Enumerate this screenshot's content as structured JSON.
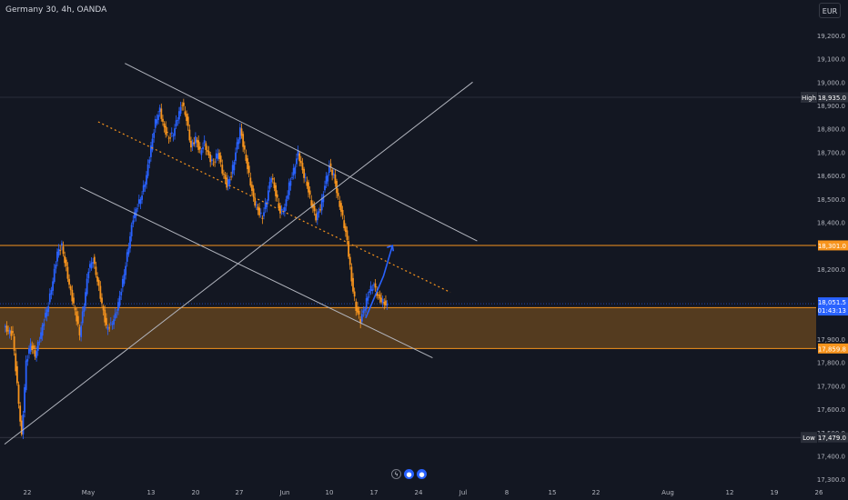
{
  "header": {
    "symbol": "Germany 30, 4h, OANDA",
    "currency": "EUR"
  },
  "colors": {
    "background": "#131722",
    "up": "#2962ff",
    "down": "#f7941d",
    "level": "#f7941d",
    "trendline": "#b2b5be",
    "zone": "#8a5a1e",
    "projection": "#2962ff",
    "label_dark": "#2a2e39",
    "last_price": "#2962ff"
  },
  "chart_data": {
    "type": "candlestick",
    "y_ticks": [
      "19,200.0",
      "19,100.0",
      "19,000.0",
      "18,900.0",
      "18,800.0",
      "18,700.0",
      "18,600.0",
      "18,500.0",
      "18,400.0",
      "18,200.0",
      "17,900.0",
      "17,800.0",
      "17,700.0",
      "17,600.0",
      "17,500.0",
      "17,400.0",
      "17,300.0"
    ],
    "x_ticks": [
      "22",
      "May",
      "13",
      "20",
      "27",
      "Jun",
      "10",
      "17",
      "24",
      "Jul",
      "8",
      "15",
      "22",
      "Aug",
      "12",
      "19",
      "26"
    ],
    "price_labels": {
      "high": {
        "tag": "High",
        "value": "18,935.0"
      },
      "low": {
        "tag": "Low",
        "value": "17,479.0"
      },
      "level_top": "18,301.0",
      "last": "18,051.5",
      "countdown": "01:43:13",
      "zone_top": "18,034.5",
      "zone_bottom": "17,859.8"
    },
    "levels": [
      18301.0,
      18034.5,
      17859.8
    ],
    "zone": [
      17859.8,
      18034.5
    ],
    "high": 18935.0,
    "low": 17479.0,
    "path": [
      [
        0,
        17950
      ],
      [
        2,
        17920
      ],
      [
        3,
        17700
      ],
      [
        4,
        17480
      ],
      [
        5,
        17800
      ],
      [
        6,
        17880
      ],
      [
        7,
        17830
      ],
      [
        8,
        17900
      ],
      [
        9,
        17980
      ],
      [
        10,
        18050
      ],
      [
        11,
        18150
      ],
      [
        12,
        18270
      ],
      [
        13,
        18300
      ],
      [
        14,
        18200
      ],
      [
        15,
        18100
      ],
      [
        16,
        18020
      ],
      [
        17,
        17920
      ],
      [
        18,
        18050
      ],
      [
        19,
        18200
      ],
      [
        20,
        18240
      ],
      [
        21,
        18150
      ],
      [
        22,
        18050
      ],
      [
        23,
        17950
      ],
      [
        24,
        17960
      ],
      [
        25,
        18000
      ],
      [
        26,
        18080
      ],
      [
        27,
        18180
      ],
      [
        28,
        18300
      ],
      [
        29,
        18420
      ],
      [
        30,
        18470
      ],
      [
        31,
        18520
      ],
      [
        32,
        18600
      ],
      [
        33,
        18720
      ],
      [
        34,
        18830
      ],
      [
        35,
        18880
      ],
      [
        36,
        18800
      ],
      [
        37,
        18760
      ],
      [
        38,
        18780
      ],
      [
        39,
        18850
      ],
      [
        40,
        18910
      ],
      [
        41,
        18840
      ],
      [
        42,
        18720
      ],
      [
        43,
        18760
      ],
      [
        44,
        18700
      ],
      [
        45,
        18740
      ],
      [
        46,
        18680
      ],
      [
        47,
        18650
      ],
      [
        48,
        18700
      ],
      [
        49,
        18620
      ],
      [
        50,
        18560
      ],
      [
        51,
        18600
      ],
      [
        52,
        18700
      ],
      [
        53,
        18800
      ],
      [
        54,
        18700
      ],
      [
        55,
        18600
      ],
      [
        56,
        18500
      ],
      [
        57,
        18450
      ],
      [
        58,
        18420
      ],
      [
        59,
        18500
      ],
      [
        60,
        18600
      ],
      [
        61,
        18520
      ],
      [
        62,
        18440
      ],
      [
        63,
        18460
      ],
      [
        64,
        18560
      ],
      [
        65,
        18620
      ],
      [
        66,
        18700
      ],
      [
        67,
        18620
      ],
      [
        68,
        18560
      ],
      [
        69,
        18480
      ],
      [
        70,
        18420
      ],
      [
        71,
        18460
      ],
      [
        72,
        18560
      ],
      [
        73,
        18640
      ],
      [
        74,
        18600
      ],
      [
        75,
        18500
      ],
      [
        76,
        18420
      ],
      [
        77,
        18320
      ],
      [
        78,
        18150
      ],
      [
        79,
        18030
      ],
      [
        80,
        17980
      ],
      [
        81,
        18040
      ],
      [
        82,
        18110
      ],
      [
        83,
        18130
      ],
      [
        84,
        18080
      ],
      [
        85,
        18060
      ],
      [
        86,
        18040
      ]
    ],
    "channel_lines": [
      {
        "from": [
          27,
          19080
        ],
        "to": [
          106,
          18320
        ]
      },
      {
        "from": [
          17,
          18550
        ],
        "to": [
          96,
          17820
        ]
      }
    ],
    "cross_line": {
      "from": [
        0,
        17450
      ],
      "to": [
        105,
        19000
      ]
    },
    "dotted_trend": {
      "from": [
        21,
        18830
      ],
      "to": [
        100,
        18100
      ]
    },
    "projection": [
      [
        81,
        17990
      ],
      [
        85,
        18170
      ],
      [
        87,
        18300
      ]
    ]
  }
}
